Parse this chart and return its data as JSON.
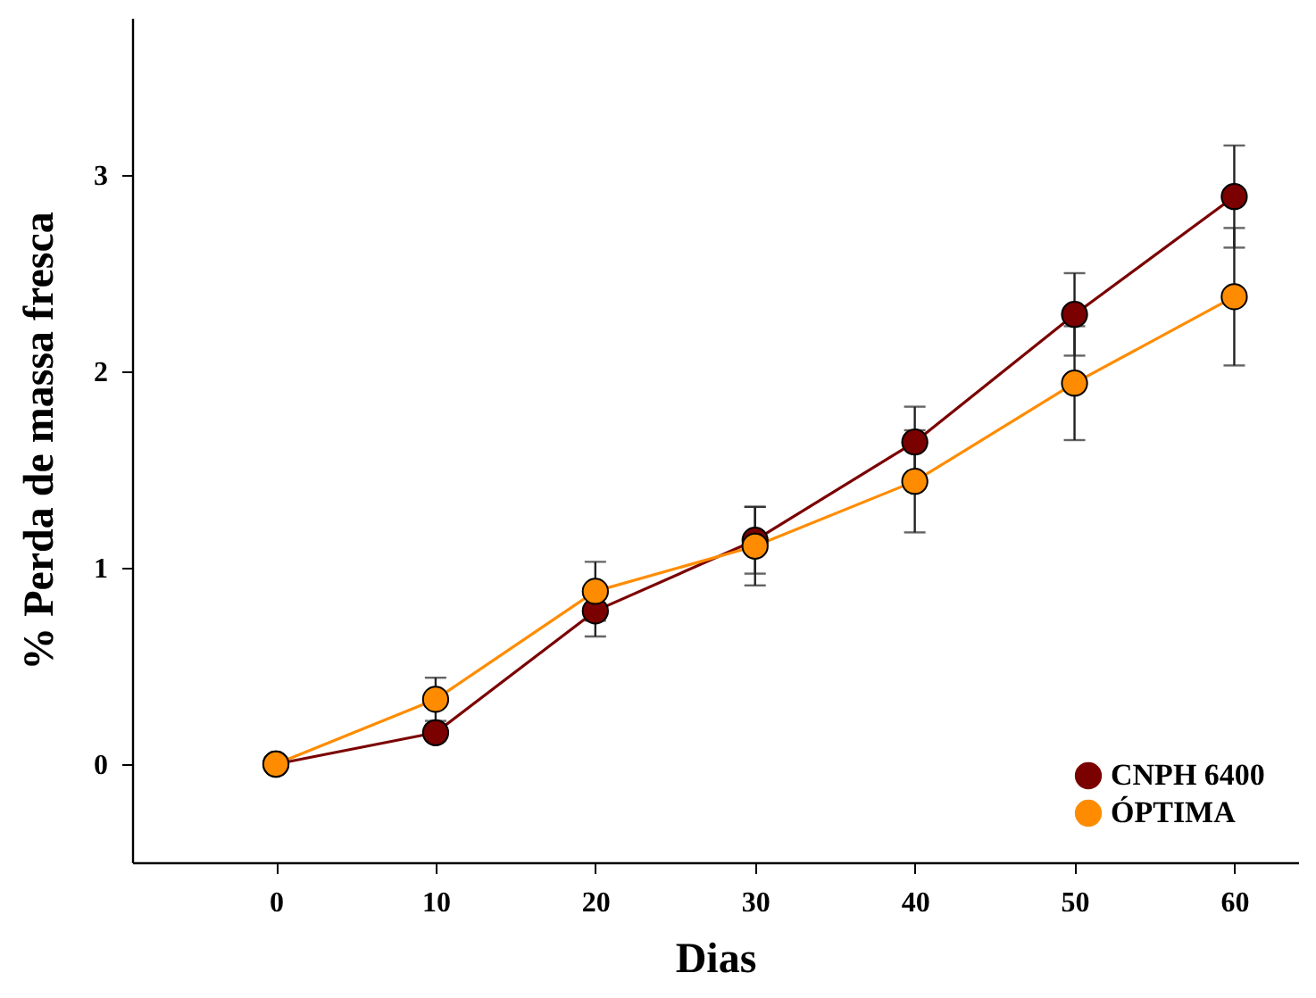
{
  "chart_data": {
    "type": "line",
    "xlabel": "Dias",
    "ylabel": "% Perda de massa fresca",
    "x": [
      0,
      10,
      20,
      30,
      40,
      50,
      60
    ],
    "series": [
      {
        "name": "CNPH 6400",
        "color": "#7b0000",
        "values": [
          0,
          0.16,
          0.78,
          1.14,
          1.64,
          2.29,
          2.89
        ],
        "errors": [
          null,
          0.04,
          0.13,
          0.17,
          0.18,
          0.21,
          0.26
        ]
      },
      {
        "name": "ÓPTIMA",
        "color": "#ff8c00",
        "values": [
          0,
          0.33,
          0.88,
          1.11,
          1.44,
          1.94,
          2.38
        ],
        "errors": [
          null,
          0.11,
          0.15,
          0.2,
          0.26,
          0.29,
          0.35
        ]
      }
    ],
    "xlim": [
      -9,
      64
    ],
    "xticks": [
      0,
      10,
      20,
      30,
      40,
      50,
      60
    ],
    "ylim": [
      -0.5,
      3.8
    ],
    "yticks": [
      0,
      1,
      2,
      3
    ],
    "marker": "circle",
    "line_style": "solid",
    "grid": false,
    "legend": "bottom right"
  }
}
